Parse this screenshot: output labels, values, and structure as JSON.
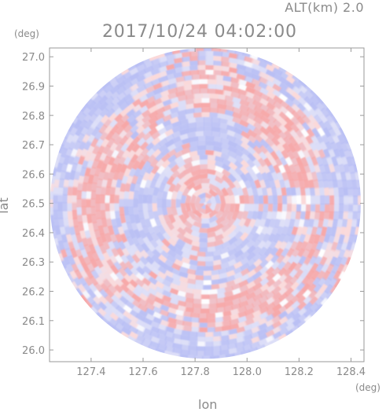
{
  "header": {
    "altitude": "ALT(km) 2.0",
    "datetime": "2017/10/24 04:02:00"
  },
  "axes": {
    "lat_unit": "(deg)",
    "lon_unit": "(deg)",
    "lat_label": "lat",
    "lon_label": "lon",
    "lat_ticks": [
      "27.0",
      "26.9",
      "26.8",
      "26.7",
      "26.6",
      "26.5",
      "26.4",
      "26.3",
      "26.2",
      "26.1",
      "26.0"
    ],
    "lon_ticks": [
      "127.4",
      "127.6",
      "127.8",
      "128.0",
      "128.2",
      "128.4"
    ]
  },
  "map_data": {
    "lon_range": [
      127.24,
      128.45
    ],
    "lat_range": [
      25.96,
      27.03
    ],
    "center": {
      "lon": 127.84,
      "lat": 26.5
    },
    "radius_deg_lat": 0.53,
    "colors": {
      "positive": "#f7a7a7",
      "negative": "#b9bff4",
      "neutral": "#ffffff",
      "frame": "#9a9a9a"
    }
  }
}
